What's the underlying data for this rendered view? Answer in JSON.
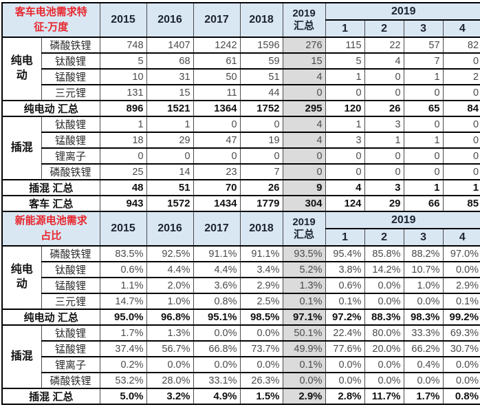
{
  "chart_data": {
    "type": "table",
    "header": {
      "years": [
        "2015",
        "2016",
        "2017",
        "2018"
      ],
      "total_label": "2019\n汇总",
      "group_label": "2019",
      "quarters": [
        "1",
        "2",
        "3",
        "4"
      ]
    },
    "sections": [
      {
        "title": "客车电池需求特\n征-万度",
        "rows": [
          {
            "kind": "data",
            "group": "纯电\n动",
            "group_span": 4,
            "label": "磷酸铁锂",
            "values": [
              "748",
              "1407",
              "1242",
              "1596",
              "276",
              "115",
              "22",
              "57",
              "82"
            ]
          },
          {
            "kind": "data",
            "label": "钛酸锂",
            "values": [
              "5",
              "68",
              "61",
              "59",
              "15",
              "5",
              "4",
              "7",
              "0"
            ]
          },
          {
            "kind": "data",
            "label": "锰酸锂",
            "values": [
              "10",
              "31",
              "50",
              "51",
              "4",
              "1",
              "0",
              "1",
              "2"
            ]
          },
          {
            "kind": "data",
            "label": "三元锂",
            "values": [
              "131",
              "15",
              "11",
              "44",
              "0",
              "0",
              "0",
              "0",
              "0"
            ]
          },
          {
            "kind": "summary",
            "label": "纯电动 汇总",
            "values": [
              "896",
              "1521",
              "1364",
              "1752",
              "295",
              "120",
              "26",
              "65",
              "84"
            ]
          },
          {
            "kind": "data",
            "group": "插混",
            "group_span": 4,
            "label": "钛酸锂",
            "values": [
              "1",
              "1",
              "0",
              "0",
              "4",
              "1",
              "3",
              "0",
              "0"
            ]
          },
          {
            "kind": "data",
            "label": "锰酸锂",
            "values": [
              "18",
              "29",
              "47",
              "19",
              "4",
              "3",
              "1",
              "1",
              "0"
            ]
          },
          {
            "kind": "data",
            "label": "锂离子",
            "values": [
              "0",
              "0",
              "0",
              "0",
              "0",
              "0",
              "0",
              "0",
              "0"
            ]
          },
          {
            "kind": "data",
            "label": "磷酸铁锂",
            "values": [
              "25",
              "14",
              "23",
              "7",
              "0",
              "0",
              "0",
              "0",
              "0"
            ]
          },
          {
            "kind": "summary",
            "label": "插混 汇总",
            "values": [
              "48",
              "51",
              "70",
              "26",
              "9",
              "4",
              "3",
              "1",
              "1"
            ]
          },
          {
            "kind": "summary",
            "label": "客车 汇总",
            "values": [
              "943",
              "1572",
              "1434",
              "1779",
              "304",
              "124",
              "29",
              "66",
              "85"
            ]
          }
        ]
      },
      {
        "title": "新能源电池需求\n占比",
        "rows": [
          {
            "kind": "data",
            "group": "纯电\n动",
            "group_span": 4,
            "label": "磷酸铁锂",
            "values": [
              "83.5%",
              "92.5%",
              "91.1%",
              "91.1%",
              "93.5%",
              "95.4%",
              "85.8%",
              "88.2%",
              "97.0%"
            ]
          },
          {
            "kind": "data",
            "label": "钛酸锂",
            "values": [
              "0.6%",
              "4.4%",
              "4.4%",
              "3.4%",
              "5.2%",
              "3.8%",
              "14.2%",
              "10.7%",
              "0.0%"
            ]
          },
          {
            "kind": "data",
            "label": "锰酸锂",
            "values": [
              "1.1%",
              "2.0%",
              "3.6%",
              "2.9%",
              "1.3%",
              "0.6%",
              "0.0%",
              "1.0%",
              "2.9%"
            ]
          },
          {
            "kind": "data",
            "label": "三元锂",
            "values": [
              "14.7%",
              "1.0%",
              "0.8%",
              "2.5%",
              "0.1%",
              "0.1%",
              "0.0%",
              "0.0%",
              "0.1%"
            ]
          },
          {
            "kind": "summary",
            "label": "纯电动 汇总",
            "values": [
              "95.0%",
              "96.8%",
              "95.1%",
              "98.5%",
              "97.1%",
              "97.2%",
              "88.3%",
              "98.3%",
              "99.2%"
            ]
          },
          {
            "kind": "data",
            "group": "插混",
            "group_span": 4,
            "label": "钛酸锂",
            "values": [
              "1.7%",
              "1.3%",
              "0.0%",
              "0.0%",
              "50.1%",
              "22.4%",
              "80.0%",
              "33.3%",
              "69.3%"
            ]
          },
          {
            "kind": "data",
            "label": "锰酸锂",
            "values": [
              "37.4%",
              "56.7%",
              "66.8%",
              "73.7%",
              "49.9%",
              "77.6%",
              "20.0%",
              "66.2%",
              "30.7%"
            ]
          },
          {
            "kind": "data",
            "label": "锂离子",
            "values": [
              "0.2%",
              "0.0%",
              "0.0%",
              "0.0%",
              "0.1%",
              "0.0%",
              "0.0%",
              "0.4%",
              "0.0%"
            ]
          },
          {
            "kind": "data",
            "label": "磷酸铁锂",
            "values": [
              "53.2%",
              "28.0%",
              "33.1%",
              "26.3%",
              "0.0%",
              "0.0%",
              "0.0%",
              "0.0%",
              "0.0%"
            ]
          },
          {
            "kind": "summary",
            "label": "插混 汇总",
            "values": [
              "5.0%",
              "3.2%",
              "4.9%",
              "1.5%",
              "2.9%",
              "2.8%",
              "11.7%",
              "1.7%",
              "0.8%"
            ]
          }
        ]
      }
    ],
    "colors": {
      "header_blue": "#d9e7f3",
      "total_column_gray": "#dbdbdb",
      "title_red": "#e8262d"
    }
  }
}
